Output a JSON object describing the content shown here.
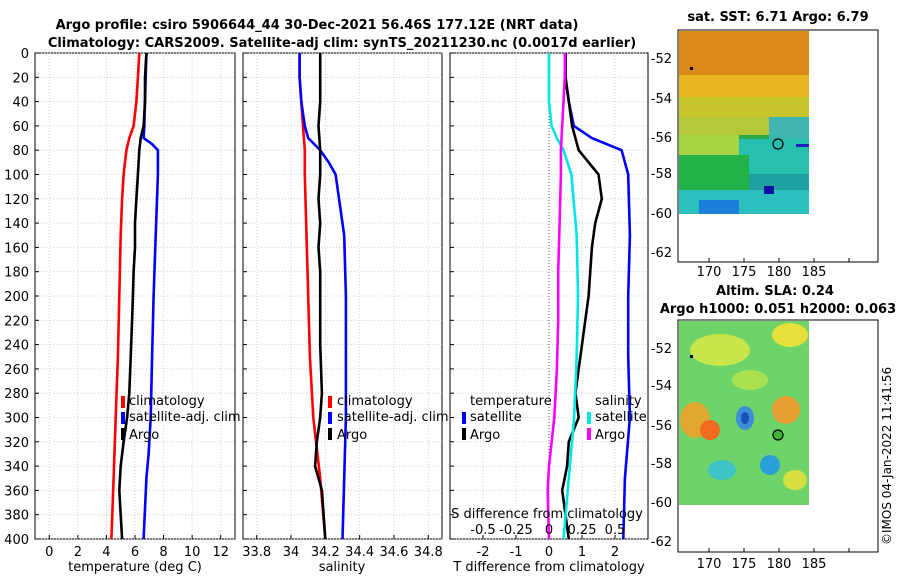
{
  "header": {
    "title_line1": "Argo profile: csiro 5906644_44 30-Dec-2021 56.46S 177.12E (NRT data)",
    "title_line2": "Climatology: CARS2009. Satellite-adj clim: synTS_20211230.nc (0.0017d earlier)"
  },
  "sst_map": {
    "title": "sat. SST: 6.71 Argo: 6.79",
    "xticks": [
      "170",
      "175",
      "180",
      "185"
    ],
    "yticks": [
      "-52",
      "-54",
      "-56",
      "-58",
      "-60",
      "-62"
    ]
  },
  "sla_map": {
    "title_line1": "Altim. SLA: 0.24",
    "title_line2": "Argo h1000: 0.051 h2000: 0.063",
    "xticks": [
      "170",
      "175",
      "180",
      "185"
    ],
    "yticks": [
      "-52",
      "-54",
      "-56",
      "-58",
      "-60",
      "-62"
    ]
  },
  "watermark": "©IMOS 04-Jan-2022 11:41:56",
  "colors": {
    "climatology": "#ff0000",
    "satellite": "#0000ff",
    "argo": "#000000",
    "t_satellite": "#0000ff",
    "s_satellite": "#00e5e5",
    "s_argo": "#ff00ff"
  },
  "chart_data": [
    {
      "type": "line",
      "xlabel": "temperature (deg C)",
      "ylabel": "",
      "xlim": [
        -1,
        13
      ],
      "ylim": [
        400,
        0
      ],
      "xticks": [
        0,
        2,
        4,
        6,
        8,
        10,
        12
      ],
      "yticks": [
        0,
        20,
        40,
        60,
        80,
        100,
        120,
        140,
        160,
        180,
        200,
        220,
        240,
        260,
        280,
        300,
        320,
        340,
        360,
        380,
        400
      ],
      "legend": [
        "climatology",
        "satellite-adj. clim",
        "Argo"
      ],
      "series": [
        {
          "name": "climatology",
          "color": "#ff0000",
          "depth": [
            0,
            20,
            40,
            60,
            70,
            80,
            100,
            120,
            150,
            200,
            250,
            300,
            350,
            400
          ],
          "values": [
            6.3,
            6.2,
            6.1,
            5.9,
            5.6,
            5.4,
            5.2,
            5.1,
            5.0,
            4.9,
            4.8,
            4.65,
            4.5,
            4.35
          ]
        },
        {
          "name": "satellite-adj. clim",
          "color": "#0000ff",
          "depth": [
            0,
            20,
            40,
            60,
            70,
            75,
            80,
            100,
            150,
            200,
            250,
            300,
            330,
            350,
            400
          ],
          "values": [
            6.8,
            6.75,
            6.7,
            6.65,
            6.6,
            7.2,
            7.6,
            7.6,
            7.45,
            7.3,
            7.2,
            7.1,
            6.95,
            6.8,
            6.6
          ]
        },
        {
          "name": "Argo",
          "color": "#000000",
          "depth": [
            0,
            20,
            40,
            60,
            70,
            80,
            100,
            120,
            140,
            160,
            180,
            200,
            220,
            250,
            280,
            300,
            320,
            340,
            360,
            380,
            400
          ],
          "values": [
            6.8,
            6.7,
            6.7,
            6.6,
            6.4,
            6.3,
            6.2,
            6.1,
            6.0,
            6.0,
            5.9,
            5.85,
            5.8,
            5.7,
            5.6,
            5.45,
            5.2,
            5.0,
            4.9,
            5.0,
            5.1
          ]
        }
      ]
    },
    {
      "type": "line",
      "xlabel": "salinity",
      "ylabel": "",
      "xlim": [
        33.72,
        34.88
      ],
      "ylim": [
        400,
        0
      ],
      "xticks": [
        33.8,
        34,
        34.2,
        34.4,
        34.6,
        34.8
      ],
      "legend": [
        "climatology",
        "satellite-adj. clim",
        "Argo"
      ],
      "series": [
        {
          "name": "climatology",
          "color": "#ff0000",
          "depth": [
            0,
            20,
            40,
            60,
            80,
            100,
            150,
            200,
            250,
            300,
            350,
            400
          ],
          "values": [
            34.05,
            34.05,
            34.06,
            34.07,
            34.08,
            34.08,
            34.09,
            34.1,
            34.11,
            34.13,
            34.17,
            34.2
          ]
        },
        {
          "name": "satellite-adj. clim",
          "color": "#0000ff",
          "depth": [
            0,
            20,
            40,
            60,
            70,
            80,
            90,
            100,
            150,
            200,
            250,
            300,
            350,
            400
          ],
          "values": [
            34.05,
            34.05,
            34.06,
            34.08,
            34.1,
            34.17,
            34.22,
            34.26,
            34.31,
            34.32,
            34.32,
            34.32,
            34.31,
            34.3
          ]
        },
        {
          "name": "Argo",
          "color": "#000000",
          "depth": [
            0,
            20,
            40,
            60,
            80,
            100,
            120,
            140,
            160,
            180,
            200,
            240,
            280,
            300,
            320,
            340,
            360,
            380,
            400
          ],
          "values": [
            34.17,
            34.17,
            34.17,
            34.16,
            34.17,
            34.17,
            34.16,
            34.17,
            34.16,
            34.17,
            34.17,
            34.17,
            34.18,
            34.17,
            34.15,
            34.14,
            34.18,
            34.19,
            34.2
          ]
        }
      ]
    },
    {
      "type": "line",
      "xlabel": "T difference from climatology",
      "secondary_xlabel": "S difference from climatology",
      "xlim": [
        -3,
        3
      ],
      "ylim": [
        400,
        0
      ],
      "xticks": [
        -2,
        -1,
        0,
        1,
        2
      ],
      "secondary_xticks": [
        "-0.5",
        "-0.25",
        "0",
        "0.25",
        "0.5"
      ],
      "legend_temperature": {
        "title": "temperature",
        "items": [
          "satellite",
          "Argo"
        ]
      },
      "legend_salinity": {
        "title": "salinity",
        "items": [
          "satellite",
          "Argo"
        ]
      },
      "series": [
        {
          "name": "temperature satellite",
          "color": "#0000ff",
          "depth": [
            0,
            20,
            40,
            60,
            70,
            80,
            100,
            150,
            200,
            250,
            300,
            350,
            400
          ],
          "values": [
            0.5,
            0.5,
            0.6,
            0.75,
            1.3,
            2.2,
            2.4,
            2.45,
            2.4,
            2.4,
            2.45,
            2.3,
            2.25
          ]
        },
        {
          "name": "temperature Argo",
          "color": "#000000",
          "depth": [
            0,
            20,
            40,
            60,
            80,
            100,
            120,
            140,
            160,
            200,
            240,
            280,
            300,
            320,
            340,
            360,
            380,
            400
          ],
          "values": [
            0.5,
            0.5,
            0.6,
            0.7,
            0.9,
            1.5,
            1.6,
            1.4,
            1.3,
            1.2,
            1.0,
            0.8,
            0.9,
            0.6,
            0.55,
            0.4,
            0.5,
            0.6
          ]
        },
        {
          "name": "salinity satellite",
          "color": "#00e5e5",
          "depth": [
            0,
            20,
            40,
            60,
            70,
            80,
            100,
            150,
            200,
            250,
            300,
            350,
            400
          ],
          "values": [
            0.0,
            0.0,
            0.0,
            0.02,
            0.06,
            0.11,
            0.17,
            0.21,
            0.22,
            0.21,
            0.19,
            0.15,
            0.11
          ]
        },
        {
          "name": "salinity Argo",
          "color": "#ff00ff",
          "depth": [
            0,
            20,
            40,
            60,
            80,
            100,
            140,
            180,
            220,
            260,
            300,
            340,
            360,
            380,
            400
          ],
          "values": [
            0.12,
            0.12,
            0.11,
            0.1,
            0.09,
            0.09,
            0.08,
            0.07,
            0.07,
            0.06,
            0.04,
            0.0,
            -0.01,
            -0.005,
            0.0
          ]
        }
      ]
    }
  ]
}
